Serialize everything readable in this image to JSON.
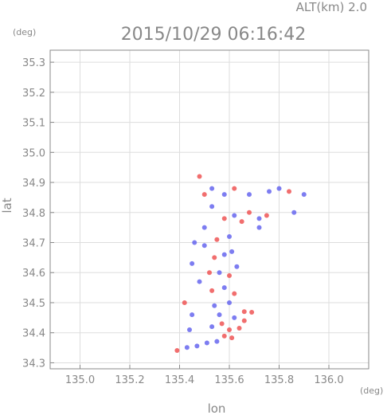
{
  "header": {
    "alt_label": "ALT(km) 2.0",
    "timestamp": "2015/10/29 06:16:42",
    "y_unit": "(deg)",
    "x_unit": "(deg)"
  },
  "chart_data": {
    "type": "scatter",
    "xlabel": "lon",
    "ylabel": "lat",
    "xlim": [
      134.88,
      136.16
    ],
    "ylim": [
      34.28,
      35.34
    ],
    "x_ticks": [
      135.0,
      135.2,
      135.4,
      135.6,
      135.8,
      136.0
    ],
    "x_tick_labels": [
      "135.0",
      "135.2",
      "135.4",
      "135.6",
      "135.8",
      "136.0"
    ],
    "y_ticks": [
      34.3,
      34.4,
      34.5,
      34.6,
      34.7,
      34.8,
      34.9,
      35.0,
      35.1,
      35.2,
      35.3
    ],
    "y_tick_labels": [
      "34.3",
      "34.4",
      "34.5",
      "34.6",
      "34.7",
      "34.8",
      "34.9",
      "35.0",
      "35.1",
      "35.2",
      "35.3"
    ],
    "grid": true,
    "colors": {
      "approaching": "#ee5555",
      "receding": "#6666ee",
      "axis": "#888888",
      "grid": "#dddddd"
    },
    "points": [
      {
        "lon": 135.39,
        "lat": 34.341,
        "v": 1
      },
      {
        "lon": 135.43,
        "lat": 34.351,
        "v": -1
      },
      {
        "lon": 135.47,
        "lat": 34.356,
        "v": -1
      },
      {
        "lon": 135.51,
        "lat": 34.366,
        "v": -1
      },
      {
        "lon": 135.55,
        "lat": 34.371,
        "v": -1
      },
      {
        "lon": 135.58,
        "lat": 34.389,
        "v": 1
      },
      {
        "lon": 135.61,
        "lat": 34.383,
        "v": 1
      },
      {
        "lon": 135.53,
        "lat": 34.42,
        "v": -1
      },
      {
        "lon": 135.57,
        "lat": 34.43,
        "v": 1
      },
      {
        "lon": 135.6,
        "lat": 34.41,
        "v": 1
      },
      {
        "lon": 135.64,
        "lat": 34.415,
        "v": 1
      },
      {
        "lon": 135.45,
        "lat": 34.46,
        "v": -1
      },
      {
        "lon": 135.56,
        "lat": 34.46,
        "v": -1
      },
      {
        "lon": 135.62,
        "lat": 34.45,
        "v": -1
      },
      {
        "lon": 135.66,
        "lat": 34.47,
        "v": 1
      },
      {
        "lon": 135.69,
        "lat": 34.468,
        "v": 1
      },
      {
        "lon": 135.54,
        "lat": 34.49,
        "v": -1
      },
      {
        "lon": 135.6,
        "lat": 34.5,
        "v": -1
      },
      {
        "lon": 135.42,
        "lat": 34.5,
        "v": 1
      },
      {
        "lon": 135.53,
        "lat": 34.54,
        "v": 1
      },
      {
        "lon": 135.58,
        "lat": 34.55,
        "v": -1
      },
      {
        "lon": 135.62,
        "lat": 34.53,
        "v": 1
      },
      {
        "lon": 135.48,
        "lat": 34.57,
        "v": -1
      },
      {
        "lon": 135.52,
        "lat": 34.6,
        "v": 1
      },
      {
        "lon": 135.56,
        "lat": 34.6,
        "v": -1
      },
      {
        "lon": 135.6,
        "lat": 34.59,
        "v": 1
      },
      {
        "lon": 135.63,
        "lat": 34.62,
        "v": -1
      },
      {
        "lon": 135.45,
        "lat": 34.63,
        "v": -1
      },
      {
        "lon": 135.54,
        "lat": 34.65,
        "v": 1
      },
      {
        "lon": 135.58,
        "lat": 34.66,
        "v": -1
      },
      {
        "lon": 135.61,
        "lat": 34.67,
        "v": -1
      },
      {
        "lon": 135.5,
        "lat": 34.69,
        "v": -1
      },
      {
        "lon": 135.55,
        "lat": 34.71,
        "v": 1
      },
      {
        "lon": 135.6,
        "lat": 34.72,
        "v": -1
      },
      {
        "lon": 135.58,
        "lat": 34.78,
        "v": 1
      },
      {
        "lon": 135.62,
        "lat": 34.79,
        "v": -1
      },
      {
        "lon": 135.65,
        "lat": 34.77,
        "v": 1
      },
      {
        "lon": 135.68,
        "lat": 34.8,
        "v": 1
      },
      {
        "lon": 135.72,
        "lat": 34.78,
        "v": -1
      },
      {
        "lon": 135.75,
        "lat": 34.79,
        "v": 1
      },
      {
        "lon": 135.53,
        "lat": 34.82,
        "v": -1
      },
      {
        "lon": 135.5,
        "lat": 34.86,
        "v": 1
      },
      {
        "lon": 135.53,
        "lat": 34.88,
        "v": -1
      },
      {
        "lon": 135.58,
        "lat": 34.86,
        "v": -1
      },
      {
        "lon": 135.62,
        "lat": 34.88,
        "v": 1
      },
      {
        "lon": 135.48,
        "lat": 34.92,
        "v": 1
      },
      {
        "lon": 135.68,
        "lat": 34.86,
        "v": -1
      },
      {
        "lon": 135.76,
        "lat": 34.87,
        "v": -1
      },
      {
        "lon": 135.8,
        "lat": 34.88,
        "v": -1
      },
      {
        "lon": 135.84,
        "lat": 34.87,
        "v": 1
      },
      {
        "lon": 135.86,
        "lat": 34.8,
        "v": -1
      },
      {
        "lon": 135.9,
        "lat": 34.86,
        "v": -1
      },
      {
        "lon": 135.72,
        "lat": 34.75,
        "v": -1
      },
      {
        "lon": 135.44,
        "lat": 34.41,
        "v": -1
      },
      {
        "lon": 135.66,
        "lat": 34.44,
        "v": 1
      },
      {
        "lon": 135.5,
        "lat": 34.75,
        "v": -1
      },
      {
        "lon": 135.46,
        "lat": 34.7,
        "v": -1
      }
    ]
  }
}
